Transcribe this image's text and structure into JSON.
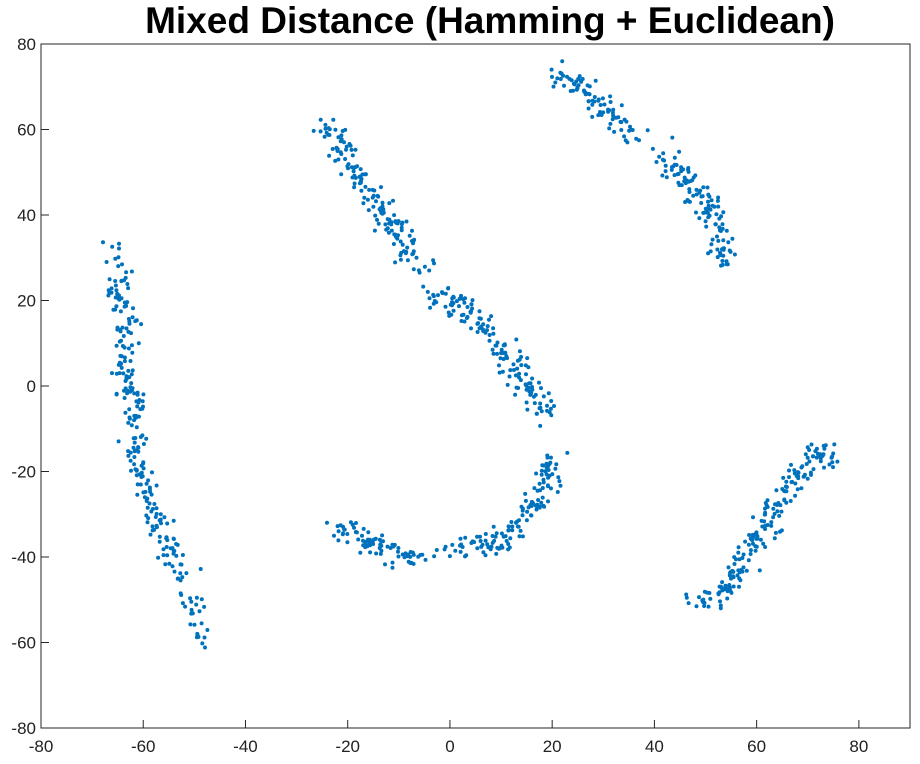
{
  "chart_data": {
    "type": "scatter",
    "title": "Mixed Distance (Hamming + Euclidean)",
    "xlabel": "",
    "ylabel": "",
    "xlim": [
      -80,
      90
    ],
    "ylim": [
      -80,
      80
    ],
    "xticks": [
      -80,
      -60,
      -40,
      -20,
      0,
      20,
      40,
      60,
      80
    ],
    "yticks": [
      -80,
      -60,
      -40,
      -20,
      0,
      20,
      40,
      60,
      80
    ],
    "marker_color": "#0072BD",
    "grid": false,
    "legend": "none",
    "series": [
      {
        "clusters": [
          {
            "path": [
              [
                -66,
                31
              ],
              [
                -64,
                28
              ],
              [
                -65,
                22
              ],
              [
                -63,
                12
              ],
              [
                -64,
                2
              ],
              [
                -61,
                -6
              ],
              [
                -62,
                -14
              ],
              [
                -60,
                -24
              ],
              [
                -57,
                -33
              ],
              [
                -54,
                -41
              ],
              [
                -51,
                -50
              ],
              [
                -49,
                -56
              ],
              [
                -47,
                -61
              ]
            ],
            "count": 260,
            "spread": 1.3
          },
          {
            "path": [
              [
                -24,
                61
              ],
              [
                -22,
                58
              ],
              [
                -20,
                52
              ],
              [
                -16,
                46
              ],
              [
                -13,
                41
              ],
              [
                -10,
                35
              ],
              [
                -8,
                30
              ],
              [
                -5,
                27
              ]
            ],
            "count": 150,
            "spread": 1.3
          },
          {
            "path": [
              [
                -3,
                21
              ],
              [
                2,
                20
              ],
              [
                6,
                15
              ],
              [
                10,
                9
              ],
              [
                14,
                2
              ],
              [
                17,
                -3
              ],
              [
                18,
                -8
              ]
            ],
            "count": 150,
            "spread": 1.6
          },
          {
            "path": [
              [
                21,
                73
              ],
              [
                25,
                70
              ],
              [
                30,
                66
              ],
              [
                33,
                62
              ],
              [
                37,
                58
              ]
            ],
            "count": 85,
            "spread": 1.2
          },
          {
            "path": [
              [
                41,
                54
              ],
              [
                45,
                50
              ],
              [
                48,
                46
              ],
              [
                51,
                42
              ],
              [
                52,
                37
              ],
              [
                53,
                33
              ],
              [
                53,
                28
              ]
            ],
            "count": 120,
            "spread": 1.3
          },
          {
            "path": [
              [
                20,
                -18
              ],
              [
                18,
                -25
              ],
              [
                15,
                -31
              ],
              [
                12,
                -35
              ],
              [
                8,
                -37
              ],
              [
                3,
                -38
              ],
              [
                -1,
                -39
              ]
            ],
            "count": 130,
            "spread": 1.3
          },
          {
            "path": [
              [
                -23,
                -33
              ],
              [
                -19,
                -34
              ],
              [
                -14,
                -37
              ],
              [
                -11,
                -39
              ],
              [
                -8,
                -40
              ],
              [
                -6,
                -40
              ]
            ],
            "count": 80,
            "spread": 1.3
          },
          {
            "path": [
              [
                48,
                -49
              ],
              [
                52,
                -51
              ],
              [
                54,
                -47
              ],
              [
                57,
                -42
              ],
              [
                61,
                -35
              ],
              [
                64,
                -28
              ],
              [
                67,
                -23
              ],
              [
                70,
                -18
              ],
              [
                72,
                -15
              ],
              [
                75,
                -18
              ]
            ],
            "count": 190,
            "spread": 1.3
          }
        ]
      }
    ]
  }
}
